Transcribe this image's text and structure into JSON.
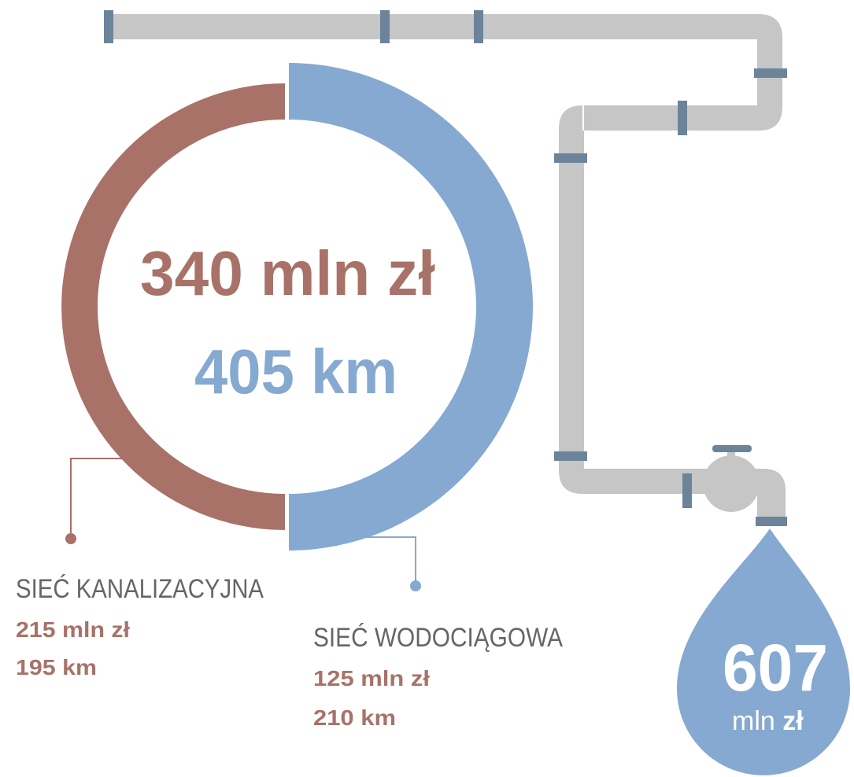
{
  "center": {
    "amount": "340 mln zł",
    "length": "405 km"
  },
  "sewer": {
    "label": "SIEĆ KANALIZACYJNA",
    "amount": "215 mln zł",
    "length": "195 km"
  },
  "water": {
    "label": "SIEĆ WODOCIĄGOWA",
    "amount": "125 mln zł",
    "length": "210 km"
  },
  "drop": {
    "amount": "607",
    "unit": "mln",
    "currency": "zł"
  }
}
